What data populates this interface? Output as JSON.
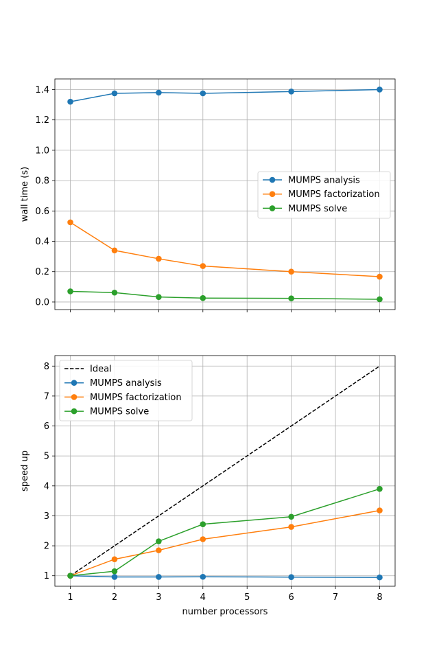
{
  "chart_data": [
    {
      "type": "line",
      "title": "",
      "xlabel": "",
      "ylabel": "wall time (s)",
      "x": [
        1,
        2,
        3,
        4,
        6,
        8
      ],
      "xlim": [
        0.65,
        8.35
      ],
      "ylim": [
        -0.05,
        1.47
      ],
      "xticks": [
        1,
        2,
        3,
        4,
        5,
        6,
        7,
        8
      ],
      "xticklabels_shown": false,
      "yticks": [
        0.0,
        0.2,
        0.4,
        0.6,
        0.8,
        1.0,
        1.2,
        1.4
      ],
      "yticklabels": [
        "0.0",
        "0.2",
        "0.4",
        "0.6",
        "0.8",
        "1.0",
        "1.2",
        "1.4"
      ],
      "grid": true,
      "legend_position": "center-right",
      "series": [
        {
          "name": "MUMPS analysis",
          "color": "#1f77b4",
          "marker": "circle",
          "values": [
            1.32,
            1.375,
            1.38,
            1.375,
            1.387,
            1.4
          ]
        },
        {
          "name": "MUMPS factorization",
          "color": "#ff7f0e",
          "marker": "circle",
          "values": [
            0.525,
            0.34,
            0.285,
            0.237,
            0.2,
            0.167
          ]
        },
        {
          "name": "MUMPS solve",
          "color": "#2ca02c",
          "marker": "circle",
          "values": [
            0.07,
            0.062,
            0.033,
            0.026,
            0.024,
            0.018
          ]
        }
      ]
    },
    {
      "type": "line",
      "title": "",
      "xlabel": "number processors",
      "ylabel": "speed up",
      "x": [
        1,
        2,
        3,
        4,
        6,
        8
      ],
      "xlim": [
        0.65,
        8.35
      ],
      "ylim": [
        0.65,
        8.35
      ],
      "xticks": [
        1,
        2,
        3,
        4,
        5,
        6,
        7,
        8
      ],
      "xticklabels": [
        "1",
        "2",
        "3",
        "4",
        "5",
        "6",
        "7",
        "8"
      ],
      "yticks": [
        1,
        2,
        3,
        4,
        5,
        6,
        7,
        8
      ],
      "yticklabels": [
        "1",
        "2",
        "3",
        "4",
        "5",
        "6",
        "7",
        "8"
      ],
      "grid": true,
      "legend_position": "top-left",
      "series": [
        {
          "name": "Ideal",
          "color": "#000000",
          "style": "dashed",
          "x": [
            1,
            8
          ],
          "values": [
            1,
            8
          ]
        },
        {
          "name": "MUMPS analysis",
          "color": "#1f77b4",
          "marker": "circle",
          "values": [
            1.0,
            0.96,
            0.96,
            0.965,
            0.955,
            0.945
          ]
        },
        {
          "name": "MUMPS factorization",
          "color": "#ff7f0e",
          "marker": "circle",
          "values": [
            1.0,
            1.55,
            1.85,
            2.22,
            2.63,
            3.18
          ]
        },
        {
          "name": "MUMPS solve",
          "color": "#2ca02c",
          "marker": "circle",
          "values": [
            1.0,
            1.15,
            2.15,
            2.72,
            2.97,
            3.9
          ]
        }
      ]
    }
  ]
}
